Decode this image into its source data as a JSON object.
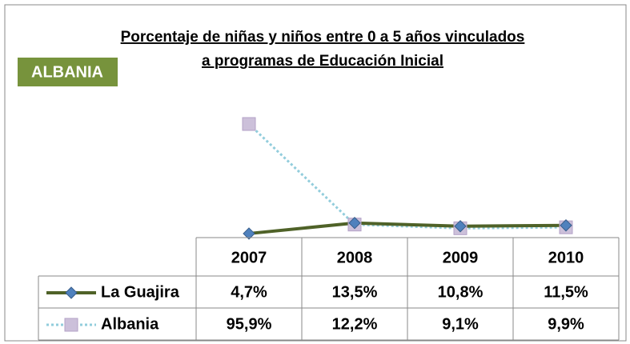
{
  "chart_data": {
    "type": "line",
    "title": [
      "Porcentaje de niñas y niños entre 0 a 5 años vinculados",
      "a programas de Educación Inicial"
    ],
    "annotation": "ALBANIA",
    "categories": [
      "2007",
      "2008",
      "2009",
      "2010"
    ],
    "series": [
      {
        "name": "La Guajira",
        "color": "#4f6228",
        "marker_color": "#4f81bd",
        "marker": "diamond",
        "line_style": "solid",
        "values": [
          4.7,
          13.5,
          10.8,
          11.5
        ],
        "value_labels": [
          "4,7%",
          "13,5%",
          "10,8%",
          "11,5%"
        ]
      },
      {
        "name": "Albania",
        "color": "#92cddc",
        "marker_color": "#ccc0da",
        "marker": "square",
        "line_style": "dotted",
        "values": [
          95.9,
          12.2,
          9.1,
          9.9
        ],
        "value_labels": [
          "95,9%",
          "12,2%",
          "9,1%",
          "9,9%"
        ]
      }
    ]
  }
}
